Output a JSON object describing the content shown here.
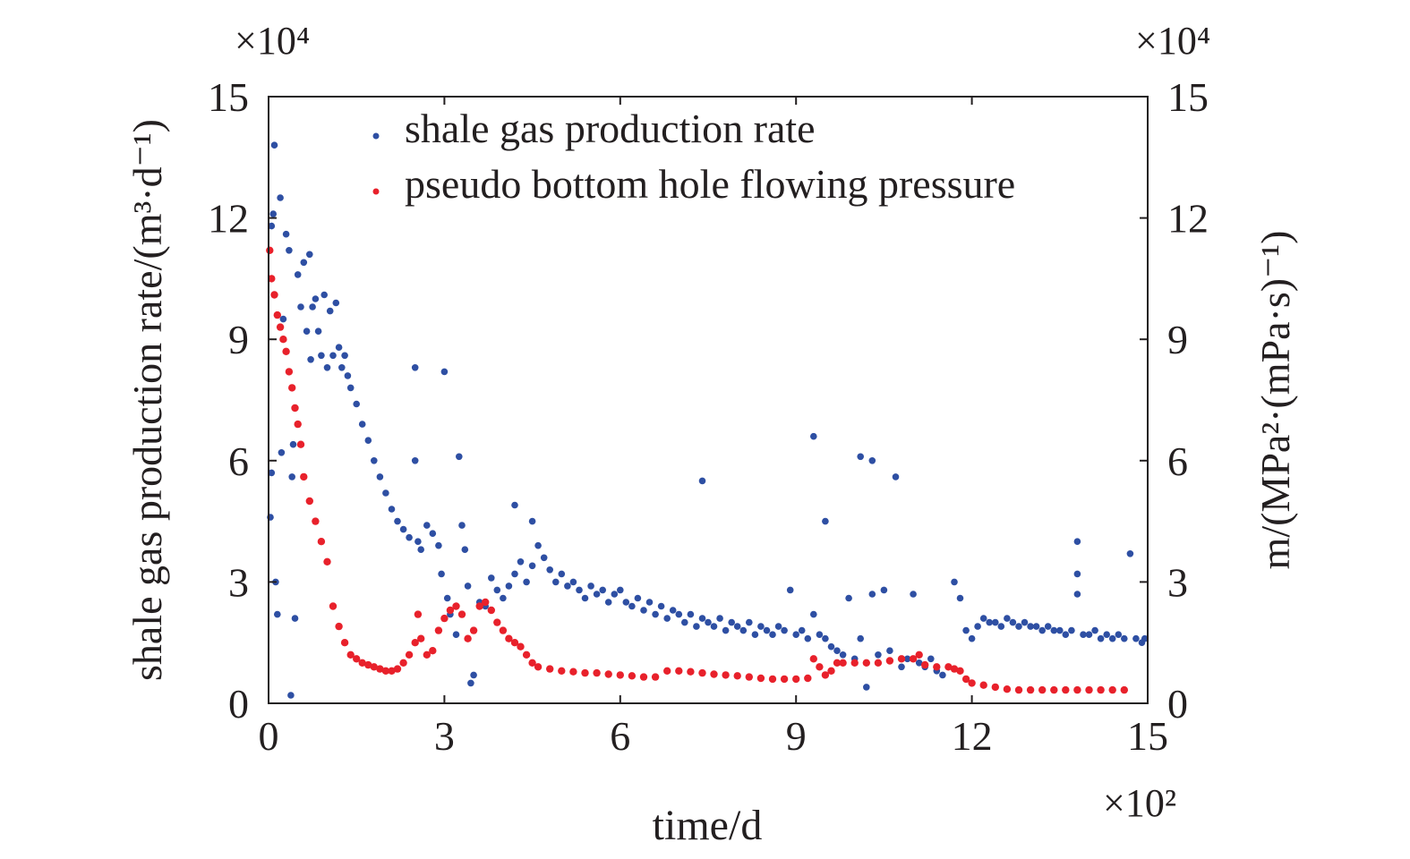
{
  "chart_data": {
    "type": "scatter",
    "title": "",
    "xlabel": "time/d",
    "ylabel_left": "shale gas production rate/(m³·d⁻¹)",
    "ylabel_right": "m/(MPa²·(mPa·s)⁻¹)",
    "x_multiplier": "×10²",
    "y_left_multiplier": "×10⁴",
    "y_right_multiplier": "×10⁴",
    "xlim": [
      0,
      15
    ],
    "ylim_left": [
      0,
      15
    ],
    "ylim_right": [
      0,
      15
    ],
    "x_ticks": [
      "0",
      "3",
      "6",
      "9",
      "12",
      "15"
    ],
    "y_left_ticks": [
      "0",
      "3",
      "6",
      "9",
      "12",
      "15"
    ],
    "y_right_ticks": [
      "0",
      "3",
      "6",
      "9",
      "12",
      "15"
    ],
    "legend_position": "top-right",
    "grid": false,
    "series": [
      {
        "name": "shale gas production rate",
        "axis": "left",
        "color": "#2e4fa3",
        "points": [
          [
            0.03,
            4.6
          ],
          [
            0.05,
            5.7
          ],
          [
            0.05,
            11.8
          ],
          [
            0.08,
            12.1
          ],
          [
            0.1,
            13.8
          ],
          [
            0.12,
            3.0
          ],
          [
            0.15,
            2.2
          ],
          [
            0.2,
            12.5
          ],
          [
            0.22,
            6.2
          ],
          [
            0.25,
            9.5
          ],
          [
            0.3,
            11.6
          ],
          [
            0.35,
            11.2
          ],
          [
            0.38,
            0.2
          ],
          [
            0.4,
            5.6
          ],
          [
            0.42,
            6.4
          ],
          [
            0.45,
            2.1
          ],
          [
            0.5,
            10.6
          ],
          [
            0.55,
            9.8
          ],
          [
            0.6,
            10.9
          ],
          [
            0.65,
            9.2
          ],
          [
            0.7,
            11.1
          ],
          [
            0.72,
            8.5
          ],
          [
            0.75,
            9.8
          ],
          [
            0.8,
            10.0
          ],
          [
            0.85,
            9.2
          ],
          [
            0.9,
            8.6
          ],
          [
            0.95,
            10.1
          ],
          [
            1.0,
            8.3
          ],
          [
            1.05,
            9.7
          ],
          [
            1.1,
            8.6
          ],
          [
            1.15,
            9.9
          ],
          [
            1.2,
            8.8
          ],
          [
            1.25,
            8.3
          ],
          [
            1.3,
            8.6
          ],
          [
            1.35,
            8.1
          ],
          [
            1.4,
            7.8
          ],
          [
            1.5,
            7.4
          ],
          [
            1.6,
            6.9
          ],
          [
            1.7,
            6.5
          ],
          [
            1.8,
            6.0
          ],
          [
            1.9,
            5.6
          ],
          [
            2.0,
            5.2
          ],
          [
            2.1,
            4.8
          ],
          [
            2.2,
            4.5
          ],
          [
            2.3,
            4.3
          ],
          [
            2.4,
            4.1
          ],
          [
            2.5,
            6.0
          ],
          [
            2.5,
            8.3
          ],
          [
            2.55,
            4.0
          ],
          [
            2.6,
            3.8
          ],
          [
            2.7,
            4.4
          ],
          [
            2.8,
            4.2
          ],
          [
            2.9,
            3.9
          ],
          [
            2.95,
            3.2
          ],
          [
            3.0,
            8.2
          ],
          [
            3.05,
            2.6
          ],
          [
            3.1,
            2.2
          ],
          [
            3.2,
            1.7
          ],
          [
            3.25,
            6.1
          ],
          [
            3.3,
            4.4
          ],
          [
            3.35,
            3.8
          ],
          [
            3.4,
            2.9
          ],
          [
            3.45,
            0.5
          ],
          [
            3.5,
            0.7
          ],
          [
            3.6,
            2.5
          ],
          [
            3.7,
            2.4
          ],
          [
            3.8,
            3.1
          ],
          [
            3.9,
            2.8
          ],
          [
            4.0,
            2.6
          ],
          [
            4.1,
            2.9
          ],
          [
            4.2,
            3.2
          ],
          [
            4.2,
            4.9
          ],
          [
            4.3,
            3.5
          ],
          [
            4.4,
            3.0
          ],
          [
            4.5,
            3.4
          ],
          [
            4.5,
            4.5
          ],
          [
            4.6,
            3.9
          ],
          [
            4.7,
            3.6
          ],
          [
            4.8,
            3.3
          ],
          [
            4.9,
            3.0
          ],
          [
            5.0,
            3.2
          ],
          [
            5.1,
            2.9
          ],
          [
            5.2,
            3.0
          ],
          [
            5.3,
            2.8
          ],
          [
            5.4,
            2.6
          ],
          [
            5.5,
            2.9
          ],
          [
            5.6,
            2.7
          ],
          [
            5.7,
            2.8
          ],
          [
            5.8,
            2.5
          ],
          [
            5.9,
            2.7
          ],
          [
            6.0,
            2.8
          ],
          [
            6.1,
            2.5
          ],
          [
            6.2,
            2.4
          ],
          [
            6.3,
            2.6
          ],
          [
            6.4,
            2.3
          ],
          [
            6.5,
            2.5
          ],
          [
            6.6,
            2.2
          ],
          [
            6.7,
            2.4
          ],
          [
            6.8,
            2.1
          ],
          [
            6.9,
            2.3
          ],
          [
            7.0,
            2.2
          ],
          [
            7.1,
            2.0
          ],
          [
            7.2,
            2.2
          ],
          [
            7.3,
            1.9
          ],
          [
            7.4,
            5.5
          ],
          [
            7.4,
            2.1
          ],
          [
            7.5,
            2.0
          ],
          [
            7.6,
            1.9
          ],
          [
            7.7,
            2.1
          ],
          [
            7.8,
            1.8
          ],
          [
            7.9,
            2.0
          ],
          [
            8.0,
            1.9
          ],
          [
            8.1,
            1.8
          ],
          [
            8.2,
            2.0
          ],
          [
            8.3,
            1.7
          ],
          [
            8.4,
            1.9
          ],
          [
            8.5,
            1.8
          ],
          [
            8.6,
            1.7
          ],
          [
            8.7,
            1.9
          ],
          [
            8.8,
            1.8
          ],
          [
            8.9,
            2.8
          ],
          [
            9.0,
            1.7
          ],
          [
            9.1,
            1.8
          ],
          [
            9.2,
            1.6
          ],
          [
            9.3,
            6.6
          ],
          [
            9.3,
            2.2
          ],
          [
            9.4,
            1.7
          ],
          [
            9.5,
            4.5
          ],
          [
            9.5,
            1.6
          ],
          [
            9.6,
            1.4
          ],
          [
            9.7,
            1.3
          ],
          [
            9.8,
            1.2
          ],
          [
            9.9,
            2.6
          ],
          [
            10.0,
            1.1
          ],
          [
            10.1,
            6.1
          ],
          [
            10.1,
            1.6
          ],
          [
            10.2,
            0.4
          ],
          [
            10.3,
            6.0
          ],
          [
            10.3,
            2.7
          ],
          [
            10.4,
            1.2
          ],
          [
            10.5,
            2.8
          ],
          [
            10.6,
            1.3
          ],
          [
            10.7,
            5.6
          ],
          [
            10.8,
            0.9
          ],
          [
            10.9,
            1.1
          ],
          [
            11.0,
            2.7
          ],
          [
            11.1,
            1.0
          ],
          [
            11.2,
            0.9
          ],
          [
            11.3,
            1.1
          ],
          [
            11.4,
            0.8
          ],
          [
            11.5,
            0.7
          ],
          [
            11.6,
            0.9
          ],
          [
            11.7,
            3.0
          ],
          [
            11.8,
            2.6
          ],
          [
            11.9,
            1.8
          ],
          [
            12.0,
            1.6
          ],
          [
            12.1,
            1.9
          ],
          [
            12.2,
            2.1
          ],
          [
            12.3,
            2.0
          ],
          [
            12.4,
            2.0
          ],
          [
            12.5,
            1.9
          ],
          [
            12.6,
            2.1
          ],
          [
            12.7,
            2.0
          ],
          [
            12.8,
            1.9
          ],
          [
            12.9,
            2.0
          ],
          [
            13.0,
            1.9
          ],
          [
            13.1,
            1.9
          ],
          [
            13.2,
            1.8
          ],
          [
            13.3,
            1.9
          ],
          [
            13.4,
            1.8
          ],
          [
            13.5,
            1.8
          ],
          [
            13.6,
            1.7
          ],
          [
            13.7,
            1.8
          ],
          [
            13.8,
            4.0
          ],
          [
            13.8,
            3.2
          ],
          [
            13.8,
            2.7
          ],
          [
            13.9,
            1.7
          ],
          [
            14.0,
            1.7
          ],
          [
            14.1,
            1.8
          ],
          [
            14.2,
            1.6
          ],
          [
            14.3,
            1.7
          ],
          [
            14.4,
            1.6
          ],
          [
            14.5,
            1.7
          ],
          [
            14.6,
            1.6
          ],
          [
            14.7,
            3.7
          ],
          [
            14.8,
            1.6
          ],
          [
            14.9,
            1.5
          ],
          [
            14.95,
            1.6
          ]
        ]
      },
      {
        "name": "pseudo bottom hole flowing pressure",
        "axis": "right",
        "color": "#e8212b",
        "points": [
          [
            0.02,
            11.2
          ],
          [
            0.05,
            10.5
          ],
          [
            0.1,
            10.1
          ],
          [
            0.15,
            9.6
          ],
          [
            0.2,
            9.3
          ],
          [
            0.25,
            9.0
          ],
          [
            0.3,
            8.7
          ],
          [
            0.35,
            8.2
          ],
          [
            0.4,
            7.8
          ],
          [
            0.45,
            7.3
          ],
          [
            0.5,
            6.9
          ],
          [
            0.55,
            6.4
          ],
          [
            0.6,
            5.6
          ],
          [
            0.7,
            5.0
          ],
          [
            0.8,
            4.5
          ],
          [
            0.9,
            4.0
          ],
          [
            1.0,
            3.5
          ],
          [
            1.1,
            2.4
          ],
          [
            1.2,
            1.9
          ],
          [
            1.3,
            1.5
          ],
          [
            1.4,
            1.2
          ],
          [
            1.5,
            1.1
          ],
          [
            1.6,
            1.0
          ],
          [
            1.7,
            0.95
          ],
          [
            1.8,
            0.9
          ],
          [
            1.9,
            0.85
          ],
          [
            2.0,
            0.8
          ],
          [
            2.1,
            0.8
          ],
          [
            2.2,
            0.85
          ],
          [
            2.3,
            1.0
          ],
          [
            2.4,
            1.2
          ],
          [
            2.5,
            1.5
          ],
          [
            2.55,
            2.2
          ],
          [
            2.6,
            1.6
          ],
          [
            2.7,
            1.2
          ],
          [
            2.8,
            1.3
          ],
          [
            2.9,
            1.8
          ],
          [
            3.0,
            2.1
          ],
          [
            3.1,
            2.3
          ],
          [
            3.2,
            2.4
          ],
          [
            3.3,
            2.2
          ],
          [
            3.4,
            1.6
          ],
          [
            3.5,
            1.8
          ],
          [
            3.6,
            2.4
          ],
          [
            3.7,
            2.5
          ],
          [
            3.8,
            2.3
          ],
          [
            3.9,
            2.0
          ],
          [
            4.0,
            1.8
          ],
          [
            4.1,
            1.6
          ],
          [
            4.2,
            1.5
          ],
          [
            4.3,
            1.4
          ],
          [
            4.4,
            1.2
          ],
          [
            4.5,
            1.0
          ],
          [
            4.6,
            0.9
          ],
          [
            4.8,
            0.85
          ],
          [
            5.0,
            0.8
          ],
          [
            5.2,
            0.78
          ],
          [
            5.4,
            0.75
          ],
          [
            5.6,
            0.75
          ],
          [
            5.8,
            0.72
          ],
          [
            6.0,
            0.7
          ],
          [
            6.2,
            0.68
          ],
          [
            6.4,
            0.65
          ],
          [
            6.6,
            0.65
          ],
          [
            6.8,
            0.8
          ],
          [
            7.0,
            0.8
          ],
          [
            7.2,
            0.78
          ],
          [
            7.4,
            0.75
          ],
          [
            7.6,
            0.72
          ],
          [
            7.8,
            0.7
          ],
          [
            8.0,
            0.68
          ],
          [
            8.2,
            0.65
          ],
          [
            8.4,
            0.62
          ],
          [
            8.6,
            0.6
          ],
          [
            8.8,
            0.6
          ],
          [
            9.0,
            0.6
          ],
          [
            9.2,
            0.62
          ],
          [
            9.3,
            1.1
          ],
          [
            9.4,
            0.9
          ],
          [
            9.5,
            0.7
          ],
          [
            9.6,
            0.8
          ],
          [
            9.7,
            1.0
          ],
          [
            9.8,
            1.0
          ],
          [
            10.0,
            1.0
          ],
          [
            10.2,
            1.0
          ],
          [
            10.4,
            1.0
          ],
          [
            10.6,
            1.05
          ],
          [
            10.8,
            1.1
          ],
          [
            11.0,
            1.1
          ],
          [
            11.1,
            1.2
          ],
          [
            11.2,
            0.95
          ],
          [
            11.4,
            0.9
          ],
          [
            11.6,
            0.9
          ],
          [
            11.7,
            0.85
          ],
          [
            11.8,
            0.8
          ],
          [
            11.9,
            0.6
          ],
          [
            12.0,
            0.5
          ],
          [
            12.2,
            0.45
          ],
          [
            12.4,
            0.4
          ],
          [
            12.6,
            0.35
          ],
          [
            12.8,
            0.33
          ],
          [
            13.0,
            0.33
          ],
          [
            13.2,
            0.33
          ],
          [
            13.4,
            0.33
          ],
          [
            13.6,
            0.33
          ],
          [
            13.8,
            0.33
          ],
          [
            14.0,
            0.33
          ],
          [
            14.2,
            0.33
          ],
          [
            14.4,
            0.33
          ],
          [
            14.6,
            0.33
          ]
        ]
      }
    ]
  }
}
